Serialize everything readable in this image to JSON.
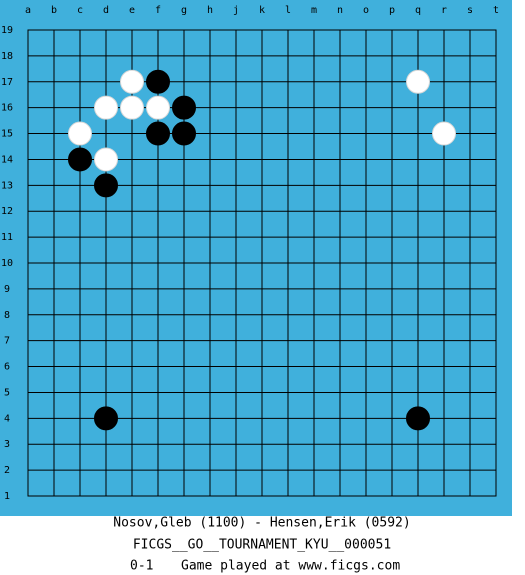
{
  "board": {
    "columns": [
      "a",
      "b",
      "c",
      "d",
      "e",
      "f",
      "g",
      "h",
      "j",
      "k",
      "l",
      "m",
      "n",
      "o",
      "p",
      "q",
      "r",
      "s",
      "t"
    ],
    "rows": [
      19,
      18,
      17,
      16,
      15,
      14,
      13,
      12,
      11,
      10,
      9,
      8,
      7,
      6,
      5,
      4,
      3,
      2,
      1
    ],
    "stones": [
      {
        "color": "white",
        "col": "e",
        "row": 17
      },
      {
        "color": "black",
        "col": "f",
        "row": 17
      },
      {
        "color": "white",
        "col": "q",
        "row": 17
      },
      {
        "color": "white",
        "col": "d",
        "row": 16
      },
      {
        "color": "white",
        "col": "e",
        "row": 16
      },
      {
        "color": "white",
        "col": "f",
        "row": 16
      },
      {
        "color": "black",
        "col": "g",
        "row": 16
      },
      {
        "color": "white",
        "col": "c",
        "row": 15
      },
      {
        "color": "black",
        "col": "f",
        "row": 15
      },
      {
        "color": "black",
        "col": "g",
        "row": 15
      },
      {
        "color": "white",
        "col": "r",
        "row": 15
      },
      {
        "color": "black",
        "col": "c",
        "row": 14
      },
      {
        "color": "white",
        "col": "d",
        "row": 14
      },
      {
        "color": "black",
        "col": "d",
        "row": 13
      },
      {
        "color": "black",
        "col": "d",
        "row": 4
      },
      {
        "color": "black",
        "col": "q",
        "row": 4
      }
    ]
  },
  "footer": {
    "players": "Nosov,Gleb (1100) - Hensen,Erik (0592)",
    "event": "FICGS__GO__TOURNAMENT_KYU__000051",
    "result": "0-1",
    "site": "Game played at www.ficgs.com"
  }
}
